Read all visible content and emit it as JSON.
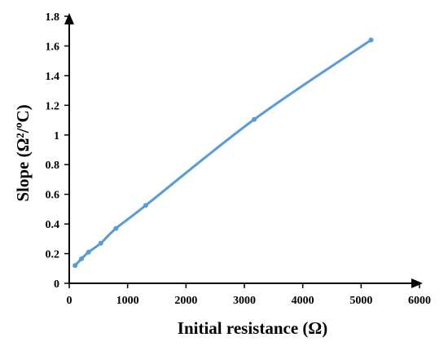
{
  "chart_data": {
    "type": "line",
    "title": "",
    "xlabel": "Initial resistance (Ω)",
    "ylabel": "Slope (Ω²/ºC)",
    "xlim": [
      0,
      6000
    ],
    "ylim": [
      0,
      1.8
    ],
    "xticks": [
      0,
      1000,
      2000,
      3000,
      4000,
      5000,
      6000
    ],
    "yticks": [
      0,
      0.2,
      0.4,
      0.6,
      0.8,
      1,
      1.2,
      1.4,
      1.6,
      1.8
    ],
    "xtick_labels": [
      "0",
      "1000",
      "2000",
      "3000",
      "4000",
      "5000",
      "6000"
    ],
    "ytick_labels": [
      "0",
      "0.2",
      "0.4",
      "0.6",
      "0.8",
      "1",
      "1.2",
      "1.4",
      "1.6",
      "1.8"
    ],
    "grid": false,
    "legend": "none",
    "series": [
      {
        "color": "#5b9bd5",
        "x": [
          100,
          210,
          330,
          540,
          800,
          1310,
          3170,
          5170
        ],
        "y": [
          0.12,
          0.165,
          0.21,
          0.27,
          0.37,
          0.525,
          1.105,
          1.64
        ]
      }
    ]
  }
}
